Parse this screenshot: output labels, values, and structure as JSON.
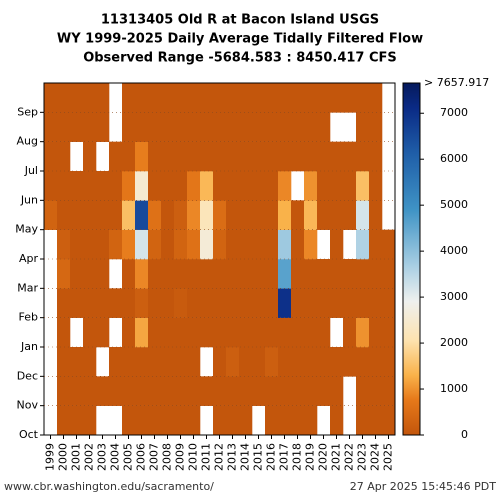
{
  "chart_data": {
    "type": "heatmap",
    "title": [
      "11313405 Old R at Bacon Island USGS",
      "WY 1999-2025 Daily Average Tidally Filtered Flow",
      "Observed Range -5684.583 : 8450.417 CFS"
    ],
    "x": [
      "1999",
      "2000",
      "2001",
      "2002",
      "2003",
      "2004",
      "2005",
      "2006",
      "2007",
      "2008",
      "2009",
      "2010",
      "2011",
      "2012",
      "2013",
      "2014",
      "2015",
      "2016",
      "2017",
      "2018",
      "2019",
      "2020",
      "2021",
      "2022",
      "2023",
      "2024",
      "2025"
    ],
    "y": [
      "Oct",
      "Nov",
      "Dec",
      "Jan",
      "Feb",
      "Mar",
      "Apr",
      "May",
      "Jun",
      "Jul",
      "Aug",
      "Sep"
    ],
    "z": [
      [
        null,
        null,
        null,
        null,
        null,
        null,
        null,
        300,
        0,
        0,
        0,
        0
      ],
      [
        0,
        0,
        0,
        0,
        0,
        400,
        200,
        0,
        0,
        0,
        0,
        0
      ],
      [
        0,
        0,
        0,
        null,
        0,
        0,
        0,
        0,
        0,
        null,
        0,
        0
      ],
      [
        0,
        0,
        0,
        0,
        0,
        0,
        0,
        0,
        0,
        0,
        0,
        0
      ],
      [
        null,
        0,
        null,
        0,
        0,
        0,
        0,
        0,
        0,
        null,
        0,
        0
      ],
      [
        null,
        0,
        0,
        null,
        0,
        null,
        300,
        0,
        0,
        0,
        null,
        null
      ],
      [
        0,
        0,
        0,
        0,
        0,
        0,
        800,
        1500,
        700,
        0,
        0,
        0
      ],
      [
        0,
        0,
        0,
        1200,
        200,
        900,
        3200,
        6500,
        2500,
        800,
        0,
        0
      ],
      [
        0,
        0,
        0,
        0,
        0,
        0,
        300,
        600,
        0,
        0,
        0,
        0
      ],
      [
        0,
        0,
        0,
        0,
        0,
        0,
        0,
        0,
        0,
        0,
        0,
        0
      ],
      [
        0,
        0,
        0,
        0,
        100,
        0,
        300,
        200,
        0,
        0,
        0,
        0
      ],
      [
        0,
        0,
        0,
        0,
        0,
        0,
        600,
        900,
        700,
        0,
        0,
        0
      ],
      [
        null,
        0,
        null,
        0,
        0,
        0,
        2600,
        2200,
        1400,
        0,
        0,
        0
      ],
      [
        0,
        0,
        0,
        0,
        0,
        0,
        300,
        500,
        0,
        0,
        0,
        0
      ],
      [
        0,
        0,
        200,
        0,
        0,
        0,
        0,
        0,
        0,
        0,
        0,
        0
      ],
      [
        0,
        0,
        0,
        0,
        0,
        0,
        0,
        0,
        0,
        0,
        0,
        0
      ],
      [
        null,
        0,
        0,
        0,
        0,
        0,
        0,
        0,
        0,
        0,
        0,
        0
      ],
      [
        0,
        0,
        200,
        0,
        0,
        0,
        0,
        0,
        0,
        0,
        0,
        0
      ],
      [
        0,
        0,
        0,
        0,
        7000,
        4600,
        3800,
        1300,
        900,
        0,
        0,
        0
      ],
      [
        0,
        0,
        0,
        0,
        0,
        0,
        0,
        0,
        null,
        0,
        0,
        0
      ],
      [
        0,
        0,
        0,
        0,
        0,
        0,
        900,
        1400,
        1000,
        0,
        0,
        0
      ],
      [
        null,
        0,
        0,
        0,
        0,
        0,
        null,
        0,
        0,
        0,
        0,
        0
      ],
      [
        0,
        0,
        0,
        null,
        0,
        0,
        0,
        0,
        0,
        0,
        null,
        0
      ],
      [
        null,
        null,
        0,
        0,
        0,
        0,
        null,
        0,
        0,
        0,
        null,
        0
      ],
      [
        0,
        0,
        0,
        1000,
        0,
        0,
        3600,
        3200,
        1500,
        0,
        0,
        0
      ],
      [
        0,
        0,
        0,
        0,
        0,
        0,
        0,
        0,
        0,
        0,
        0,
        0
      ],
      [
        0,
        0,
        0,
        0,
        0,
        0,
        0,
        null,
        null,
        null,
        null,
        null
      ]
    ],
    "colorbar_lim": [
      0,
      7657.917
    ],
    "colorbar_ticks": [
      0,
      1000,
      2000,
      3000,
      4000,
      5000,
      6000,
      7000
    ],
    "colorbar_max_label": "> 7657.917",
    "source": "www.cbr.washington.edu/sacramento/",
    "timestamp": "27 Apr 2025 15:45:46 PDT"
  }
}
